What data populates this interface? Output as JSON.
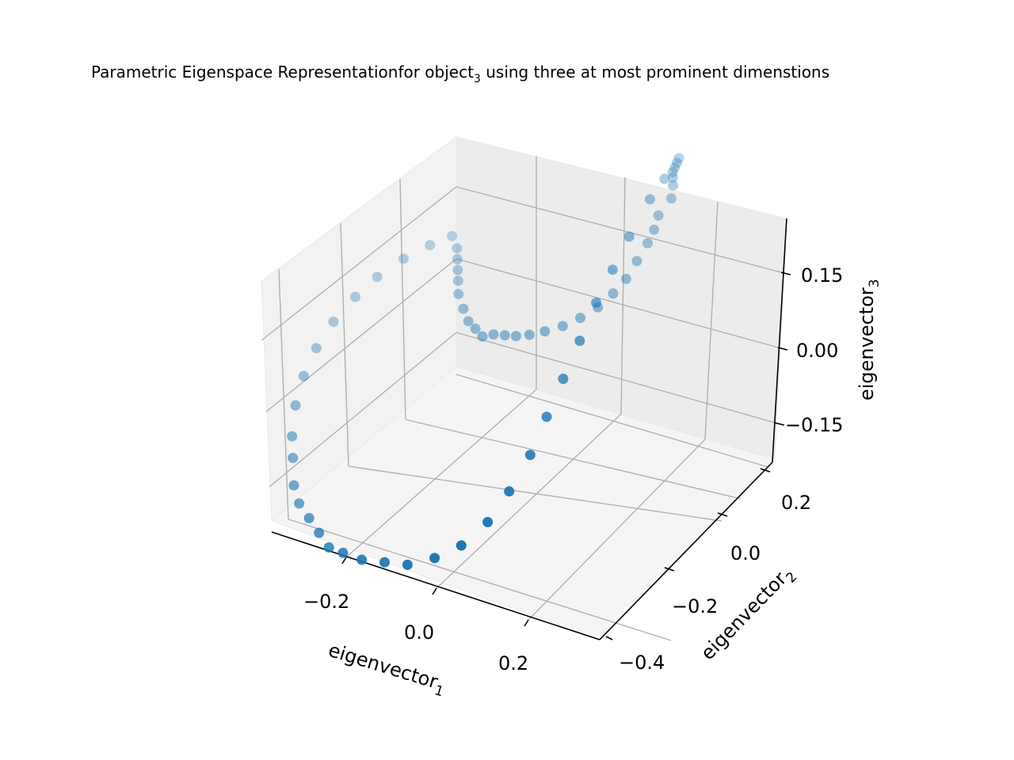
{
  "chart_data": {
    "type": "scatter",
    "projection": "3d",
    "title": "Parametric Eigenspace Representationfor object",
    "title_subscript": "3",
    "title_suffix": " using three at most prominent dimenstions",
    "xlabel": "eigenvector",
    "xlabel_subscript": "1",
    "ylabel": "eigenvector",
    "ylabel_subscript": "2",
    "zlabel": "eigenvector",
    "zlabel_subscript": "3",
    "x_ticks": [
      "−0.2",
      "0.0",
      "0.2"
    ],
    "y_ticks": [
      "−0.4",
      "−0.2",
      "0.0",
      "0.2"
    ],
    "z_ticks": [
      "−0.15",
      "0.00",
      "0.15"
    ],
    "grid": true,
    "marker_color": "#1f77b4",
    "points": [
      [
        0.19,
        0.26,
        0.19
      ],
      [
        0.19,
        0.255,
        0.185
      ],
      [
        0.19,
        0.25,
        0.18
      ],
      [
        0.19,
        0.245,
        0.175
      ],
      [
        0.195,
        0.24,
        0.17
      ],
      [
        0.2,
        0.235,
        0.16
      ],
      [
        0.21,
        0.22,
        0.15
      ],
      [
        0.2,
        0.2,
        0.13
      ],
      [
        0.2,
        0.19,
        0.11
      ],
      [
        0.195,
        0.18,
        0.09
      ],
      [
        0.19,
        0.16,
        0.07
      ],
      [
        0.185,
        0.14,
        0.05
      ],
      [
        0.175,
        0.12,
        0.035
      ],
      [
        0.16,
        0.1,
        0.02
      ],
      [
        0.14,
        0.08,
        0.01
      ],
      [
        0.12,
        0.06,
        0.005
      ],
      [
        0.095,
        0.045,
        0.0
      ],
      [
        0.075,
        0.03,
        0.0
      ],
      [
        0.055,
        0.02,
        0.0
      ],
      [
        0.035,
        0.015,
        0.0
      ],
      [
        0.015,
        0.01,
        0.0
      ],
      [
        0.0,
        0.0,
        0.0
      ],
      [
        -0.02,
        0.005,
        0.005
      ],
      [
        -0.04,
        0.01,
        0.01
      ],
      [
        -0.06,
        0.02,
        0.02
      ],
      [
        -0.08,
        0.03,
        0.035
      ],
      [
        -0.09,
        0.04,
        0.05
      ],
      [
        -0.1,
        0.05,
        0.06
      ],
      [
        -0.11,
        0.06,
        0.07
      ],
      [
        -0.12,
        0.07,
        0.08
      ],
      [
        -0.14,
        0.08,
        0.09
      ],
      [
        -0.17,
        0.06,
        0.08
      ],
      [
        -0.2,
        0.03,
        0.07
      ],
      [
        -0.23,
        0.0,
        0.05
      ],
      [
        -0.25,
        -0.03,
        0.03
      ],
      [
        -0.27,
        -0.06,
        0.0
      ],
      [
        -0.28,
        -0.09,
        -0.03
      ],
      [
        -0.28,
        -0.12,
        -0.06
      ],
      [
        -0.27,
        -0.15,
        -0.09
      ],
      [
        -0.25,
        -0.18,
        -0.12
      ],
      [
        -0.23,
        -0.2,
        -0.14
      ],
      [
        -0.2,
        -0.23,
        -0.16
      ],
      [
        -0.17,
        -0.25,
        -0.17
      ],
      [
        -0.13,
        -0.27,
        -0.17
      ],
      [
        -0.09,
        -0.29,
        -0.17
      ],
      [
        -0.05,
        -0.31,
        -0.17
      ],
      [
        -0.01,
        -0.32,
        -0.16
      ],
      [
        0.04,
        -0.33,
        -0.15
      ],
      [
        0.09,
        -0.33,
        -0.14
      ],
      [
        0.14,
        -0.33,
        -0.13
      ],
      [
        0.19,
        -0.32,
        -0.11
      ],
      [
        0.23,
        -0.3,
        -0.09
      ],
      [
        0.26,
        -0.27,
        -0.06
      ],
      [
        0.27,
        -0.23,
        -0.03
      ],
      [
        0.27,
        -0.18,
        0.0
      ],
      [
        0.26,
        -0.13,
        0.03
      ],
      [
        0.25,
        -0.08,
        0.06
      ],
      [
        0.24,
        -0.03,
        0.09
      ],
      [
        0.23,
        0.02,
        0.12
      ],
      [
        0.22,
        0.07,
        0.14
      ],
      [
        0.21,
        0.12,
        0.16
      ],
      [
        0.2,
        0.18,
        0.18
      ],
      [
        0.195,
        0.22,
        0.185
      ]
    ]
  }
}
